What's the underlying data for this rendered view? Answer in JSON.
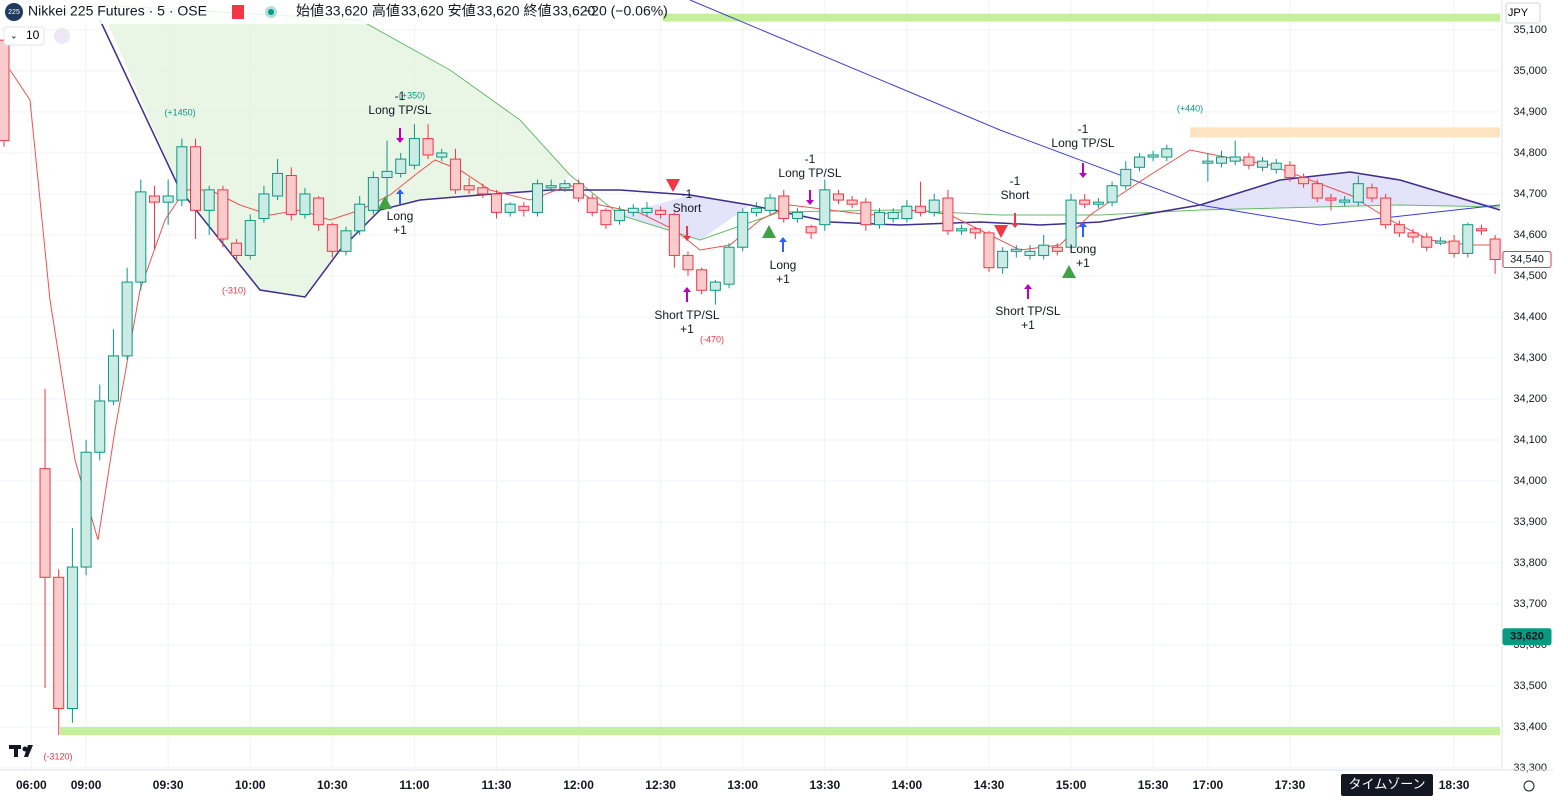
{
  "header": {
    "symbol_badge": "225",
    "title": "Nikkei 225 Futures · 5 · OSE",
    "ohlc": [
      {
        "label": "始値",
        "value": "33,620"
      },
      {
        "label": "高値",
        "value": "33,620"
      },
      {
        "label": "安値",
        "value": "33,620"
      },
      {
        "label": "終値",
        "value": "33,620"
      }
    ],
    "change": "−20 (−0.06%)",
    "interval": "10",
    "currency": "JPY",
    "timezone_tip": "タイムゾーン"
  },
  "chart_data": {
    "type": "candlestick",
    "up_color": "#089981",
    "down_color": "#f23645",
    "ylim": [
      33295,
      35173
    ],
    "yticks": [
      {
        "value": 33300,
        "label": "33,300"
      },
      {
        "value": 33400,
        "label": "33,400"
      },
      {
        "value": 33500,
        "label": "33,500"
      },
      {
        "value": 33600,
        "label": "33,600"
      },
      {
        "value": 33700,
        "label": "33,700"
      },
      {
        "value": 33800,
        "label": "33,800"
      },
      {
        "value": 33900,
        "label": "33,900"
      },
      {
        "value": 34000,
        "label": "34,000"
      },
      {
        "value": 34100,
        "label": "34,100"
      },
      {
        "value": 34200,
        "label": "34,200"
      },
      {
        "value": 34300,
        "label": "34,300"
      },
      {
        "value": 34400,
        "label": "34,400"
      },
      {
        "value": 34500,
        "label": "34,500"
      },
      {
        "value": 34600,
        "label": "34,600"
      },
      {
        "value": 34700,
        "label": "34,700"
      },
      {
        "value": 34800,
        "label": "34,800"
      },
      {
        "value": 34900,
        "label": "34,900"
      },
      {
        "value": 35000,
        "label": "35,000"
      },
      {
        "value": 35100,
        "label": "35,100"
      }
    ],
    "categories": [
      null,
      null,
      "06:00",
      null,
      null,
      null,
      "09:00",
      null,
      null,
      null,
      null,
      null,
      "09:30",
      null,
      null,
      null,
      null,
      null,
      "10:00",
      null,
      null,
      null,
      null,
      null,
      "10:30",
      null,
      null,
      null,
      null,
      null,
      "11:00",
      null,
      null,
      null,
      null,
      null,
      "11:30",
      null,
      null,
      null,
      null,
      null,
      "12:00",
      null,
      null,
      null,
      null,
      null,
      "12:30",
      null,
      null,
      null,
      null,
      null,
      "13:00",
      null,
      null,
      null,
      null,
      null,
      "13:30",
      null,
      null,
      null,
      null,
      null,
      "14:00",
      null,
      null,
      null,
      null,
      null,
      "14:30",
      null,
      null,
      null,
      null,
      null,
      "15:00",
      null,
      null,
      null,
      null,
      null,
      "15:30",
      null,
      null,
      null,
      "17:00",
      null,
      null,
      null,
      null,
      null,
      "17:30",
      null,
      null,
      null,
      null,
      null,
      null,
      null,
      null,
      null,
      null,
      null,
      "18:30",
      null,
      null,
      null
    ],
    "ohlc": [
      [
        35075,
        35100,
        34815,
        34830
      ],
      null,
      null,
      [
        34030,
        34225,
        33495,
        33765
      ],
      [
        33765,
        33785,
        33380,
        33445
      ],
      [
        33445,
        33885,
        33410,
        33790
      ],
      [
        33790,
        34100,
        33770,
        34070
      ],
      [
        34070,
        34235,
        34050,
        34195
      ],
      [
        34195,
        34370,
        34185,
        34305
      ],
      [
        34305,
        34520,
        34295,
        34485
      ],
      [
        34485,
        34735,
        34465,
        34705
      ],
      [
        34695,
        34720,
        34565,
        34680
      ],
      [
        34680,
        34735,
        34625,
        34695
      ],
      [
        34685,
        34835,
        34670,
        34815
      ],
      [
        34815,
        34835,
        34590,
        34660
      ],
      [
        34660,
        34720,
        34600,
        34710
      ],
      [
        34710,
        34720,
        34570,
        34590
      ],
      [
        34580,
        34590,
        34535,
        34550
      ],
      [
        34550,
        34650,
        34540,
        34635
      ],
      [
        34640,
        34720,
        34630,
        34700
      ],
      [
        34695,
        34785,
        34685,
        34750
      ],
      [
        34745,
        34765,
        34635,
        34650
      ],
      [
        34650,
        34715,
        34640,
        34700
      ],
      [
        34690,
        34695,
        34610,
        34625
      ],
      [
        34625,
        34630,
        34545,
        34560
      ],
      [
        34560,
        34620,
        34550,
        34610
      ],
      [
        34610,
        34695,
        34600,
        34675
      ],
      [
        34660,
        34755,
        34650,
        34740
      ],
      [
        34740,
        34830,
        34675,
        34755
      ],
      [
        34750,
        34800,
        34740,
        34785
      ],
      [
        34770,
        34870,
        34760,
        34835
      ],
      [
        34835,
        34870,
        34785,
        34795
      ],
      [
        34790,
        34810,
        34780,
        34800
      ],
      [
        34785,
        34810,
        34700,
        34710
      ],
      [
        34720,
        34740,
        34700,
        34710
      ],
      [
        34715,
        34725,
        34690,
        34700
      ],
      [
        34700,
        34710,
        34640,
        34655
      ],
      [
        34655,
        34680,
        34645,
        34675
      ],
      [
        34670,
        34680,
        34645,
        34660
      ],
      [
        34655,
        34735,
        34645,
        34725
      ],
      [
        34715,
        34735,
        34705,
        34720
      ],
      [
        34715,
        34735,
        34705,
        34725
      ],
      [
        34725,
        34735,
        34680,
        34690
      ],
      [
        34690,
        34700,
        34645,
        34655
      ],
      [
        34660,
        34665,
        34615,
        34625
      ],
      [
        34635,
        34670,
        34625,
        34660
      ],
      [
        34655,
        34675,
        34645,
        34665
      ],
      [
        34655,
        34680,
        34645,
        34665
      ],
      [
        34660,
        34670,
        34640,
        34650
      ],
      [
        34650,
        34655,
        34520,
        34550
      ],
      [
        34550,
        34560,
        34500,
        34515
      ],
      [
        34515,
        34520,
        34455,
        34465
      ],
      [
        34465,
        34490,
        34430,
        34485
      ],
      [
        34480,
        34580,
        34470,
        34570
      ],
      [
        34570,
        34665,
        34560,
        34655
      ],
      [
        34655,
        34680,
        34645,
        34665
      ],
      [
        34660,
        34700,
        34650,
        34690
      ],
      [
        34695,
        34710,
        34630,
        34640
      ],
      [
        34640,
        34665,
        34630,
        34655
      ],
      [
        34620,
        34625,
        34590,
        34605
      ],
      [
        34625,
        34735,
        34610,
        34710
      ],
      [
        34700,
        34710,
        34675,
        34685
      ],
      [
        34685,
        34695,
        34665,
        34675
      ],
      [
        34680,
        34690,
        34610,
        34625
      ],
      [
        34625,
        34665,
        34615,
        34655
      ],
      [
        34640,
        34665,
        34630,
        34655
      ],
      [
        34640,
        34685,
        34630,
        34670
      ],
      [
        34670,
        34730,
        34645,
        34655
      ],
      [
        34655,
        34700,
        34645,
        34685
      ],
      [
        34690,
        34710,
        34600,
        34610
      ],
      [
        34610,
        34625,
        34600,
        34615
      ],
      [
        34615,
        34620,
        34590,
        34605
      ],
      [
        34605,
        34610,
        34510,
        34520
      ],
      [
        34520,
        34570,
        34505,
        34560
      ],
      [
        34560,
        34575,
        34545,
        34565
      ],
      [
        34550,
        34575,
        34540,
        34560
      ],
      [
        34550,
        34600,
        34540,
        34575
      ],
      [
        34570,
        34580,
        34550,
        34560
      ],
      [
        34570,
        34700,
        34560,
        34685
      ],
      [
        34685,
        34700,
        34665,
        34675
      ],
      [
        34675,
        34690,
        34665,
        34680
      ],
      [
        34680,
        34730,
        34670,
        34720
      ],
      [
        34720,
        34780,
        34710,
        34760
      ],
      [
        34765,
        34800,
        34755,
        34790
      ],
      [
        34790,
        34805,
        34780,
        34795
      ],
      [
        34790,
        34820,
        34780,
        34810
      ],
      null,
      null,
      [
        34775,
        34800,
        34730,
        34780
      ],
      [
        34775,
        34805,
        34765,
        34790
      ],
      [
        34780,
        34830,
        34770,
        34790
      ],
      [
        34790,
        34800,
        34760,
        34770
      ],
      [
        34765,
        34790,
        34755,
        34780
      ],
      [
        34760,
        34785,
        34750,
        34775
      ],
      [
        34770,
        34780,
        34730,
        34740
      ],
      [
        34740,
        34750,
        34715,
        34725
      ],
      [
        34725,
        34735,
        34680,
        34690
      ],
      [
        34690,
        34700,
        34660,
        34685
      ],
      [
        34680,
        34695,
        34670,
        34685
      ],
      [
        34680,
        34745,
        34670,
        34725
      ],
      [
        34715,
        34725,
        34680,
        34690
      ],
      [
        34690,
        34700,
        34615,
        34625
      ],
      [
        34625,
        34635,
        34595,
        34605
      ],
      [
        34605,
        34615,
        34580,
        34595
      ],
      [
        34595,
        34605,
        34560,
        34570
      ],
      [
        34580,
        34595,
        34575,
        34585
      ],
      [
        34585,
        34600,
        34545,
        34555
      ],
      [
        34555,
        34630,
        34545,
        34625
      ],
      [
        34615,
        34625,
        34600,
        34610
      ],
      [
        34590,
        34600,
        34505,
        34540
      ]
    ],
    "levels": [
      {
        "value": 35130,
        "color": "#c5f09a"
      },
      {
        "value": 33390,
        "color": "#c5f09a"
      },
      {
        "value": 34850,
        "color": "#fde3bf"
      }
    ],
    "price_tags": [
      {
        "value": 34540,
        "label": "34,540",
        "color": "#f23645"
      },
      {
        "value": 33620,
        "label": "33,620",
        "color": "#089981"
      }
    ],
    "signals": [
      [
        "-1",
        "Long TP/SL"
      ],
      [
        "Long",
        "+1"
      ],
      [
        "-1",
        "Short"
      ],
      [
        "Short TP/SL",
        "+1"
      ],
      [
        "-1",
        "Long TP/SL"
      ],
      [
        "Long",
        "+1"
      ],
      [
        "-1",
        "Short"
      ],
      [
        "Short TP/SL",
        "+1"
      ],
      [
        "-1",
        "Long TP/SL"
      ],
      [
        "Long",
        "+1"
      ]
    ],
    "profits": [
      "(+1450)",
      "(-310)",
      "(+350)",
      "(-470)",
      "(+440)",
      "(-3120)"
    ]
  }
}
